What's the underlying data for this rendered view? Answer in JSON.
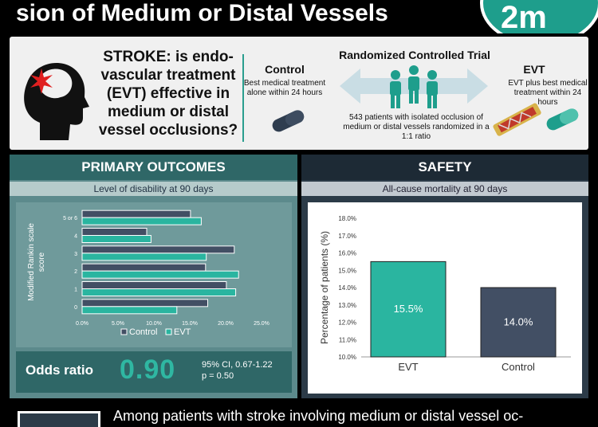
{
  "header": {
    "title_line": "sion of Medium or Distal Vessels",
    "logo_text": "2m"
  },
  "trial": {
    "question": "STROKE: is endo-vascular treatment (EVT) effective in medium or distal vessel occlusions?",
    "control_title": "Control",
    "control_desc": "Best medical treatment alone within 24 hours",
    "rct_title": "Randomized Controlled Trial",
    "rct_desc": "543 patients with isolated occlusion of medium or distal vessels randomized in a 1:1 ratio",
    "evt_title": "EVT",
    "evt_desc": "EVT plus best medical treatment within 24 hours"
  },
  "primary": {
    "heading": "PRIMARY OUTCOMES",
    "subheading": "Level of disability at 90 days",
    "odds_label": "Odds ratio",
    "odds_value": "0.90",
    "ci": "95% CI, 0.67-1.22",
    "p": "p = 0.50"
  },
  "safety": {
    "heading": "SAFETY",
    "subheading": "All-cause mortality at 90 days"
  },
  "conclusion": {
    "text": "Among patients with stroke involving medium or distal vessel oc-"
  },
  "colors": {
    "evt": "#2ab5a0",
    "control": "#424f64",
    "teal_dark": "#2f6767",
    "navy": "#2c3b48"
  },
  "chart_data": [
    {
      "type": "bar",
      "orientation": "horizontal",
      "categories": [
        "0",
        "1",
        "2",
        "3",
        "4",
        "5 or 6"
      ],
      "series": [
        {
          "name": "Control",
          "values": [
            17.5,
            20.1,
            17.2,
            21.2,
            9.0,
            15.1
          ]
        },
        {
          "name": "EVT",
          "values": [
            13.2,
            21.4,
            21.8,
            17.3,
            9.6,
            16.6
          ]
        }
      ],
      "ylabel": "Modified Rankin scale score",
      "xticks": [
        "0.0%",
        "5.0%",
        "10.0%",
        "15.0%",
        "20.0%",
        "25.0%"
      ],
      "xlim": [
        0,
        25
      ],
      "legend": "bottom"
    },
    {
      "type": "bar",
      "categories": [
        "EVT",
        "Control"
      ],
      "values": [
        15.5,
        14.0
      ],
      "labels": [
        "15.5%",
        "14.0%"
      ],
      "ylabel": "Percentage of patients (%)",
      "yticks": [
        "10.0%",
        "11.0%",
        "12.0%",
        "13.0%",
        "14.0%",
        "15.0%",
        "16.0%",
        "17.0%",
        "18.0%"
      ],
      "ylim": [
        10,
        18
      ]
    }
  ]
}
